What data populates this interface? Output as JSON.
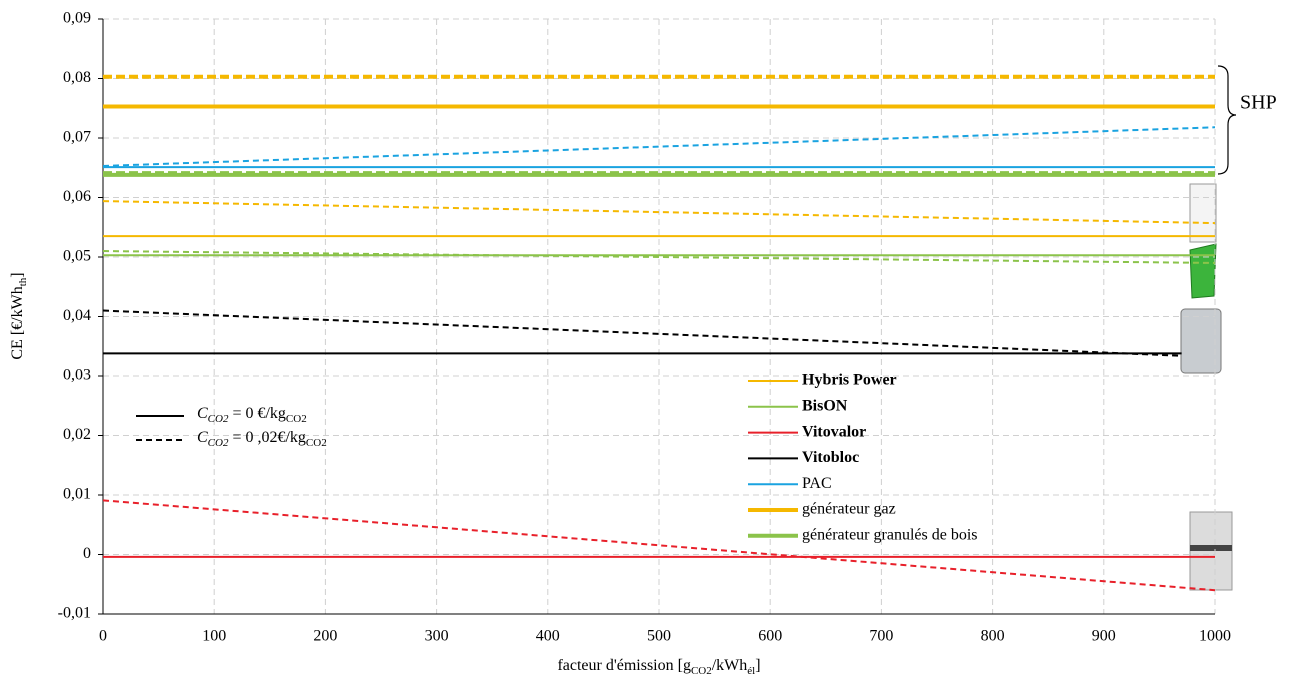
{
  "chart_data": {
    "type": "line",
    "y_label_parts": [
      "CE [€/kWh",
      "th",
      "]"
    ],
    "x_label_parts": [
      "facteur d'émission [g",
      "CO2",
      "/kWh",
      "él",
      "]"
    ],
    "annotation": "SHP",
    "xlim": [
      0,
      1000
    ],
    "xticks": [
      0,
      100,
      200,
      300,
      400,
      500,
      600,
      700,
      800,
      900,
      1000
    ],
    "ylim": [
      -0.01,
      0.09
    ],
    "yticks": [
      {
        "value": -0.01,
        "label": "-0,01"
      },
      0,
      {
        "value": 0.01,
        "label": "0,01"
      },
      {
        "value": 0.02,
        "label": "0,02"
      },
      {
        "value": 0.03,
        "label": "0,03"
      },
      {
        "value": 0.04,
        "label": "0,04"
      },
      {
        "value": 0.05,
        "label": "0,05"
      },
      {
        "value": 0.06,
        "label": "0,06"
      },
      {
        "value": 0.07,
        "label": "0,07"
      },
      {
        "value": 0.08,
        "label": "0,08"
      },
      {
        "value": 0.09,
        "label": "0,09"
      }
    ],
    "grid": true,
    "style_legend": [
      {
        "label_parts": [
          "C",
          "CO2",
          " = 0 €/kg",
          "CO2"
        ],
        "dash": false
      },
      {
        "label_parts": [
          "C",
          "CO2",
          " = 0 ,02€/kg",
          "CO2"
        ],
        "dash": true
      }
    ],
    "series": [
      {
        "name": "Hybris Power",
        "color": "#f5b800",
        "width": 2,
        "bold": true,
        "solid": {
          "x": [
            0,
            1000
          ],
          "values": [
            0.0535,
            0.0535
          ]
        },
        "dashed": {
          "x": [
            0,
            1000
          ],
          "values": [
            0.0594,
            0.0557
          ]
        }
      },
      {
        "name": "BisON",
        "color": "#8bc34a",
        "width": 2,
        "bold": true,
        "solid": {
          "x": [
            0,
            1000
          ],
          "values": [
            0.0503,
            0.0503
          ]
        },
        "dashed": {
          "x": [
            0,
            1000
          ],
          "values": [
            0.051,
            0.049
          ]
        }
      },
      {
        "name": "Vitovalor",
        "color": "#e8202a",
        "width": 2,
        "bold": true,
        "solid": {
          "x": [
            0,
            1000
          ],
          "values": [
            -0.0004,
            -0.0004
          ]
        },
        "dashed": {
          "x": [
            0,
            1000
          ],
          "values": [
            0.0091,
            -0.006
          ]
        }
      },
      {
        "name": "Vitobloc",
        "color": "#000000",
        "width": 2,
        "bold": true,
        "solid": {
          "x": [
            0,
            970
          ],
          "values": [
            0.0338,
            0.0338
          ]
        },
        "dashed": {
          "x": [
            0,
            970
          ],
          "values": [
            0.041,
            0.0334
          ]
        }
      },
      {
        "name": "PAC",
        "color": "#1aa3e0",
        "width": 2,
        "bold": false,
        "solid": {
          "x": [
            0,
            1000
          ],
          "values": [
            0.0651,
            0.0651
          ]
        },
        "dashed": {
          "x": [
            0,
            1000
          ],
          "values": [
            0.0653,
            0.0718
          ]
        }
      },
      {
        "name": "générateur gaz",
        "color": "#f5b800",
        "width": 4,
        "bold": false,
        "solid": {
          "x": [
            0,
            1000
          ],
          "values": [
            0.0753,
            0.0753
          ]
        },
        "dashed": {
          "x": [
            0,
            1000
          ],
          "values": [
            0.0803,
            0.0803
          ]
        }
      },
      {
        "name": "générateur granulés de bois",
        "color": "#8bc34a",
        "width": 4,
        "bold": false,
        "solid": {
          "x": [
            0,
            1000
          ],
          "values": [
            0.0638,
            0.0638
          ]
        },
        "dashed": {
          "x": [
            0,
            1000
          ],
          "values": [
            0.0641,
            0.0641
          ]
        }
      }
    ]
  }
}
